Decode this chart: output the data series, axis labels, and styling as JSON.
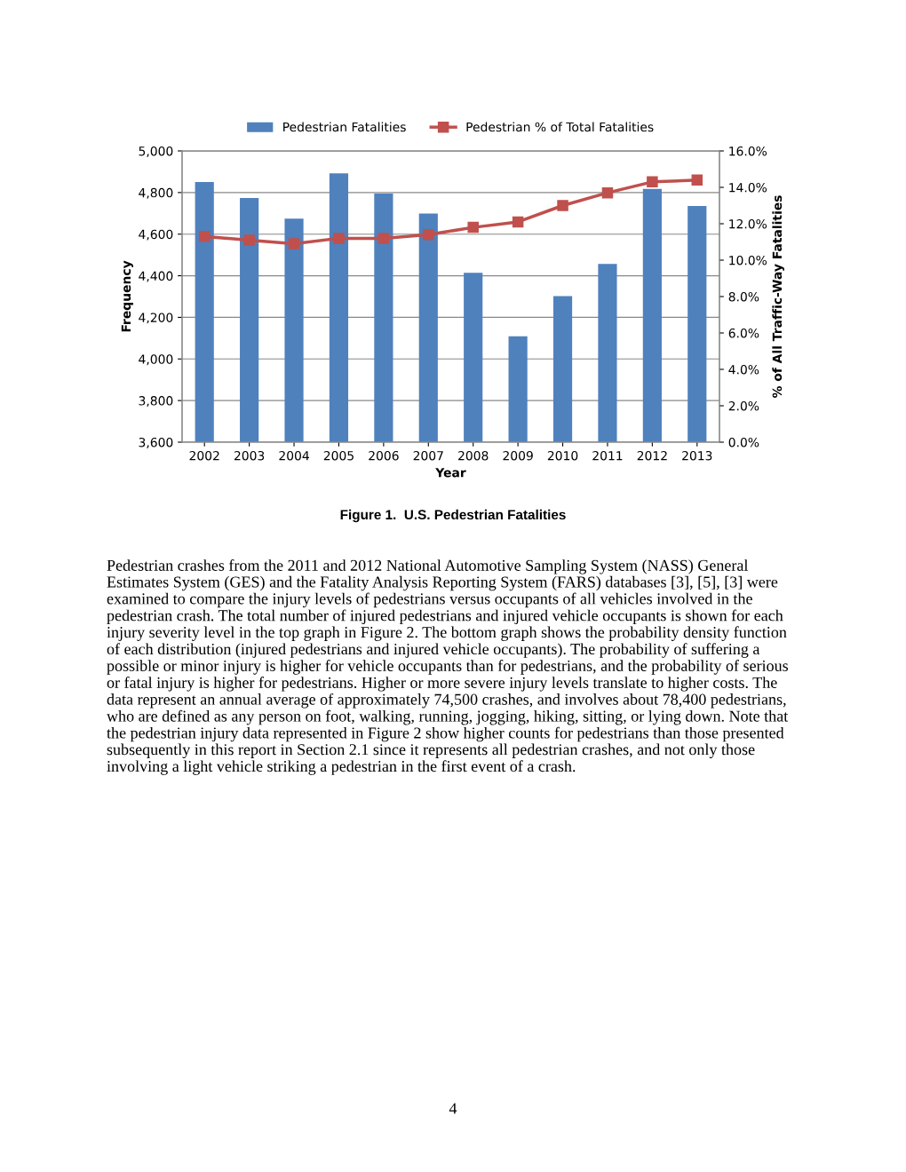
{
  "chart_data": {
    "type": "bar",
    "xlabel": "Year",
    "ylabel": "Frequency",
    "y2label": "% of All Traffic-Way Fatalities",
    "categories": [
      "2002",
      "2003",
      "2004",
      "2005",
      "2006",
      "2007",
      "2008",
      "2009",
      "2010",
      "2011",
      "2012",
      "2013"
    ],
    "series": [
      {
        "name": "Pedestrian Fatalities",
        "color": "#4f81bd",
        "values": [
          4851,
          4774,
          4675,
          4892,
          4795,
          4699,
          4414,
          4109,
          4302,
          4457,
          4818,
          4735
        ]
      },
      {
        "name": "Pedestrian % of Total Fatalities",
        "type": "line",
        "axis": "y2",
        "color": "#c0504d",
        "marker": "square",
        "values": [
          11.3,
          11.1,
          10.9,
          11.2,
          11.2,
          11.4,
          11.8,
          12.1,
          13.0,
          13.7,
          14.3,
          14.4
        ]
      }
    ],
    "ylim": [
      3600,
      5000
    ],
    "yticks": [
      {
        "value": 3600,
        "label": "3,600"
      },
      {
        "value": 3800,
        "label": "3,800"
      },
      {
        "value": 4000,
        "label": "4,000"
      },
      {
        "value": 4200,
        "label": "4,200"
      },
      {
        "value": 4400,
        "label": "4,400"
      },
      {
        "value": 4600,
        "label": "4,600"
      },
      {
        "value": 4800,
        "label": "4,800"
      },
      {
        "value": 5000,
        "label": "5,000"
      }
    ],
    "y2lim": [
      0,
      16
    ],
    "y2ticks": [
      {
        "value": 0,
        "label": "0.0%"
      },
      {
        "value": 2,
        "label": "2.0%"
      },
      {
        "value": 4,
        "label": "4.0%"
      },
      {
        "value": 6,
        "label": "6.0%"
      },
      {
        "value": 8,
        "label": "8.0%"
      },
      {
        "value": 10,
        "label": "10.0%"
      },
      {
        "value": 12,
        "label": "12.0%"
      },
      {
        "value": 14,
        "label": "14.0%"
      },
      {
        "value": 16,
        "label": "16.0%"
      }
    ],
    "grid": "y",
    "legend": "top",
    "annotations": [
      "Figure 1.  U.S. Pedestrian Fatalities",
      "Pedestrian crashes from the 2011 and 2012 National Automotive Sampling System (NASS) General\nEstimates System (GES) and the Fatality Analysis Reporting System (FARS) databases [3], [5], [3] were\nexamined to compare the injury levels of pedestrians versus occupants of all vehicles involved in the\npedestrian crash. The total number of injured pedestrians and injured vehicle occupants is shown for each\ninjury severity level in the top graph in Figure 2. The bottom graph shows the probability density function\nof each distribution (injured pedestrians and injured vehicle occupants). The probability of suffering a\npossible or minor injury is higher for vehicle occupants than for pedestrians, and the probability of serious\nor fatal injury is higher for pedestrians. Higher or more severe injury levels translate to higher costs. The\ndata represent an annual average of approximately 74,500 crashes, and involves about 78,400 pedestrians,\nwho are defined as any person on foot, walking, running, jogging, hiking, sitting, or lying down. Note that\nthe pedestrian injury data represented in Figure 2 show higher counts for pedestrians than those presented\nsubsequently in this report in Section 2.1 since it represents all pedestrian crashes, and not only those\ninvolving a light vehicle striking a pedestrian in the first event of a crash.",
      "4"
    ]
  }
}
